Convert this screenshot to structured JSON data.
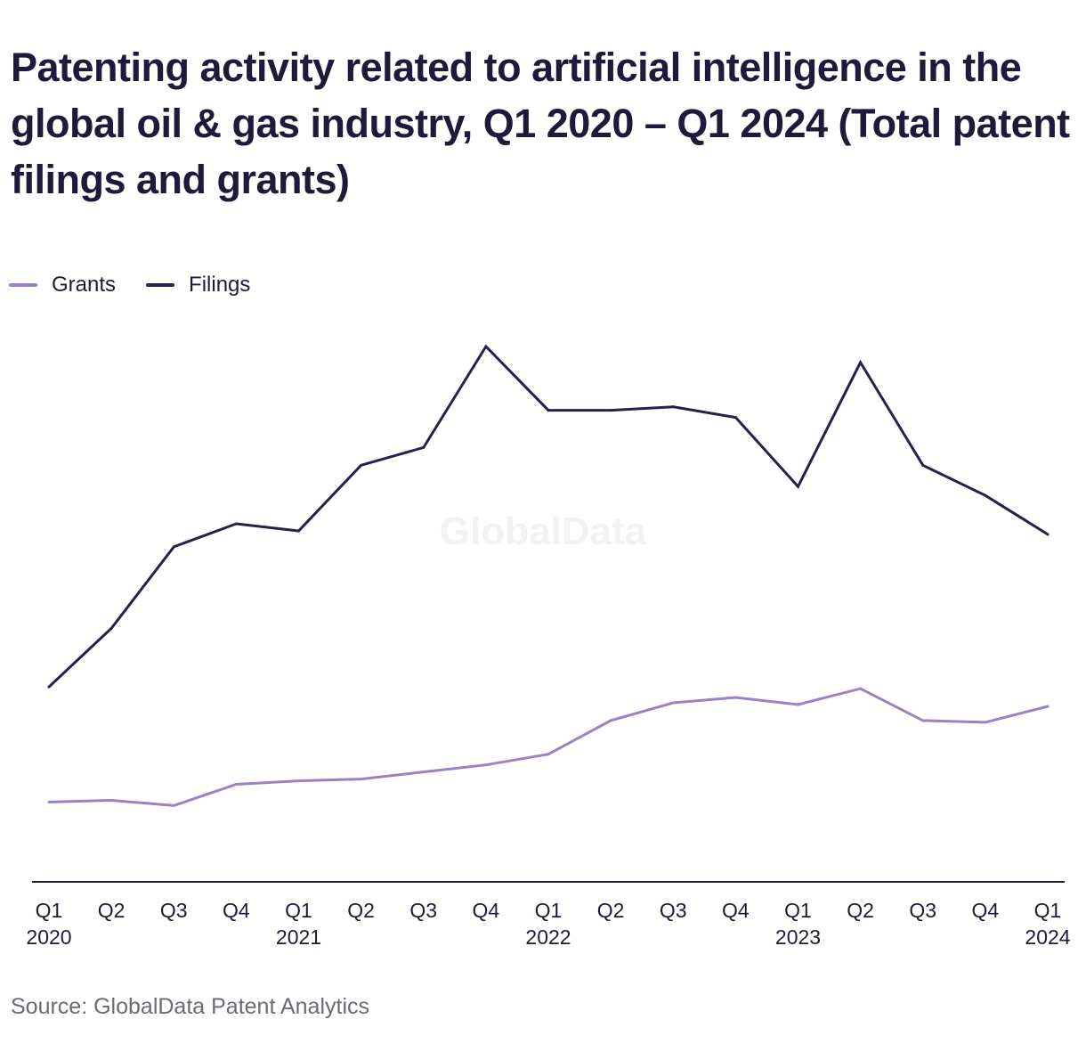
{
  "title": "Patenting activity related to artificial intelligence in the global oil & gas industry, Q1 2020 – Q1 2024 (Total patent filings and grants)",
  "watermark": "GlobalData",
  "source": "Source: GlobalData Patent Analytics",
  "colors": {
    "grants": "#9b82c4",
    "filings": "#2a1f4a",
    "axis": "#1e1b3a",
    "text": "#1e1b3a"
  },
  "chart_data": {
    "type": "line",
    "x_labels": [
      "Q1 2020",
      "Q2 2020",
      "Q3 2020",
      "Q4 2020",
      "Q1 2021",
      "Q2 2021",
      "Q3 2021",
      "Q4 2021",
      "Q1 2022",
      "Q2 2022",
      "Q3 2022",
      "Q4 2022",
      "Q1 2023",
      "Q2 2023",
      "Q3 2023",
      "Q4 2023",
      "Q1 2024"
    ],
    "tick_quarters": [
      "Q1",
      "Q2",
      "Q3",
      "Q4",
      "Q1",
      "Q2",
      "Q3",
      "Q4",
      "Q1",
      "Q2",
      "Q3",
      "Q4",
      "Q1",
      "Q2",
      "Q3",
      "Q4",
      "Q1"
    ],
    "tick_years": [
      "2020",
      "",
      "",
      "",
      "2021",
      "",
      "",
      "",
      "2022",
      "",
      "",
      "",
      "2023",
      "",
      "",
      "",
      "2024"
    ],
    "ylim": [
      0,
      300
    ],
    "grid": false,
    "y_axis_labels_shown": false,
    "legend_position": "top-left",
    "series": [
      {
        "name": "Grants",
        "color": "#9b82c4",
        "values": [
          45,
          46,
          43,
          55,
          57,
          58,
          62,
          66,
          72,
          91,
          101,
          104,
          100,
          109,
          91,
          90,
          99
        ]
      },
      {
        "name": "Filings",
        "color": "#2a1f4a",
        "values": [
          110,
          143,
          189,
          202,
          198,
          235,
          245,
          302,
          266,
          266,
          268,
          262,
          223,
          293,
          235,
          218,
          196
        ]
      }
    ]
  }
}
